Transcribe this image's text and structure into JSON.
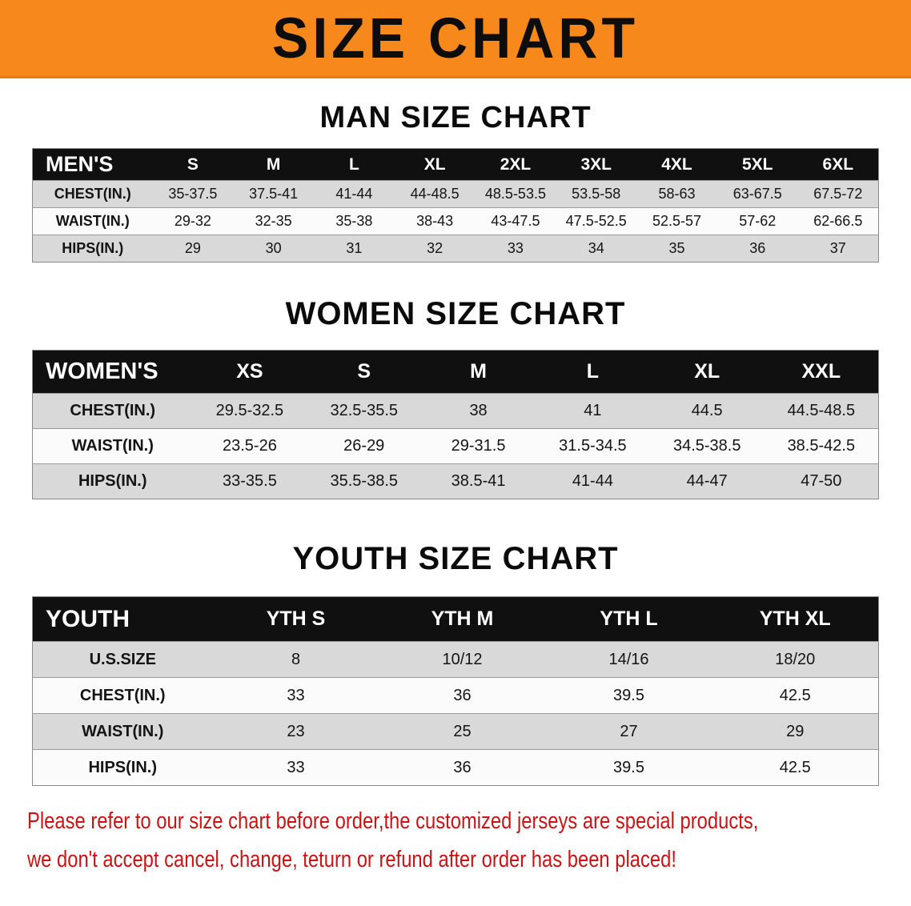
{
  "banner": {
    "title": "SIZE CHART"
  },
  "colors": {
    "banner_bg": "#f6881c",
    "table_header_bg": "#101010",
    "row_gray": "#d9d9d9",
    "notice_red": "#ce1212"
  },
  "sections": [
    {
      "heading": "MAN SIZE CHART",
      "header_label": "MEN'S",
      "columns": [
        "S",
        "M",
        "L",
        "XL",
        "2XL",
        "3XL",
        "4XL",
        "5XL",
        "6XL"
      ],
      "rows": [
        {
          "label": "CHEST(IN.)",
          "values": [
            "35-37.5",
            "37.5-41",
            "41-44",
            "44-48.5",
            "48.5-53.5",
            "53.5-58",
            "58-63",
            "63-67.5",
            "67.5-72"
          ]
        },
        {
          "label": "WAIST(IN.)",
          "values": [
            "29-32",
            "32-35",
            "35-38",
            "38-43",
            "43-47.5",
            "47.5-52.5",
            "52.5-57",
            "57-62",
            "62-66.5"
          ]
        },
        {
          "label": "HIPS(IN.)",
          "values": [
            "29",
            "30",
            "31",
            "32",
            "33",
            "34",
            "35",
            "36",
            "37"
          ]
        }
      ]
    },
    {
      "heading": "WOMEN SIZE CHART",
      "header_label": "WOMEN'S",
      "columns": [
        "XS",
        "S",
        "M",
        "L",
        "XL",
        "XXL"
      ],
      "rows": [
        {
          "label": "CHEST(IN.)",
          "values": [
            "29.5-32.5",
            "32.5-35.5",
            "38",
            "41",
            "44.5",
            "44.5-48.5"
          ]
        },
        {
          "label": "WAIST(IN.)",
          "values": [
            "23.5-26",
            "26-29",
            "29-31.5",
            "31.5-34.5",
            "34.5-38.5",
            "38.5-42.5"
          ]
        },
        {
          "label": "HIPS(IN.)",
          "values": [
            "33-35.5",
            "35.5-38.5",
            "38.5-41",
            "41-44",
            "44-47",
            "47-50"
          ]
        }
      ]
    },
    {
      "heading": "YOUTH SIZE CHART",
      "header_label": "YOUTH",
      "columns": [
        "YTH S",
        "YTH M",
        "YTH L",
        "YTH XL"
      ],
      "rows": [
        {
          "label": "U.S.SIZE",
          "values": [
            "8",
            "10/12",
            "14/16",
            "18/20"
          ]
        },
        {
          "label": "CHEST(IN.)",
          "values": [
            "33",
            "36",
            "39.5",
            "42.5"
          ]
        },
        {
          "label": "WAIST(IN.)",
          "values": [
            "23",
            "25",
            "27",
            "29"
          ]
        },
        {
          "label": "HIPS(IN.)",
          "values": [
            "33",
            "36",
            "39.5",
            "42.5"
          ]
        }
      ]
    }
  ],
  "footer": {
    "line1": "Please refer to our size chart before order,the customized jerseys are special products,",
    "line2": "we don't accept cancel, change, teturn or refund after order has been placed!"
  }
}
